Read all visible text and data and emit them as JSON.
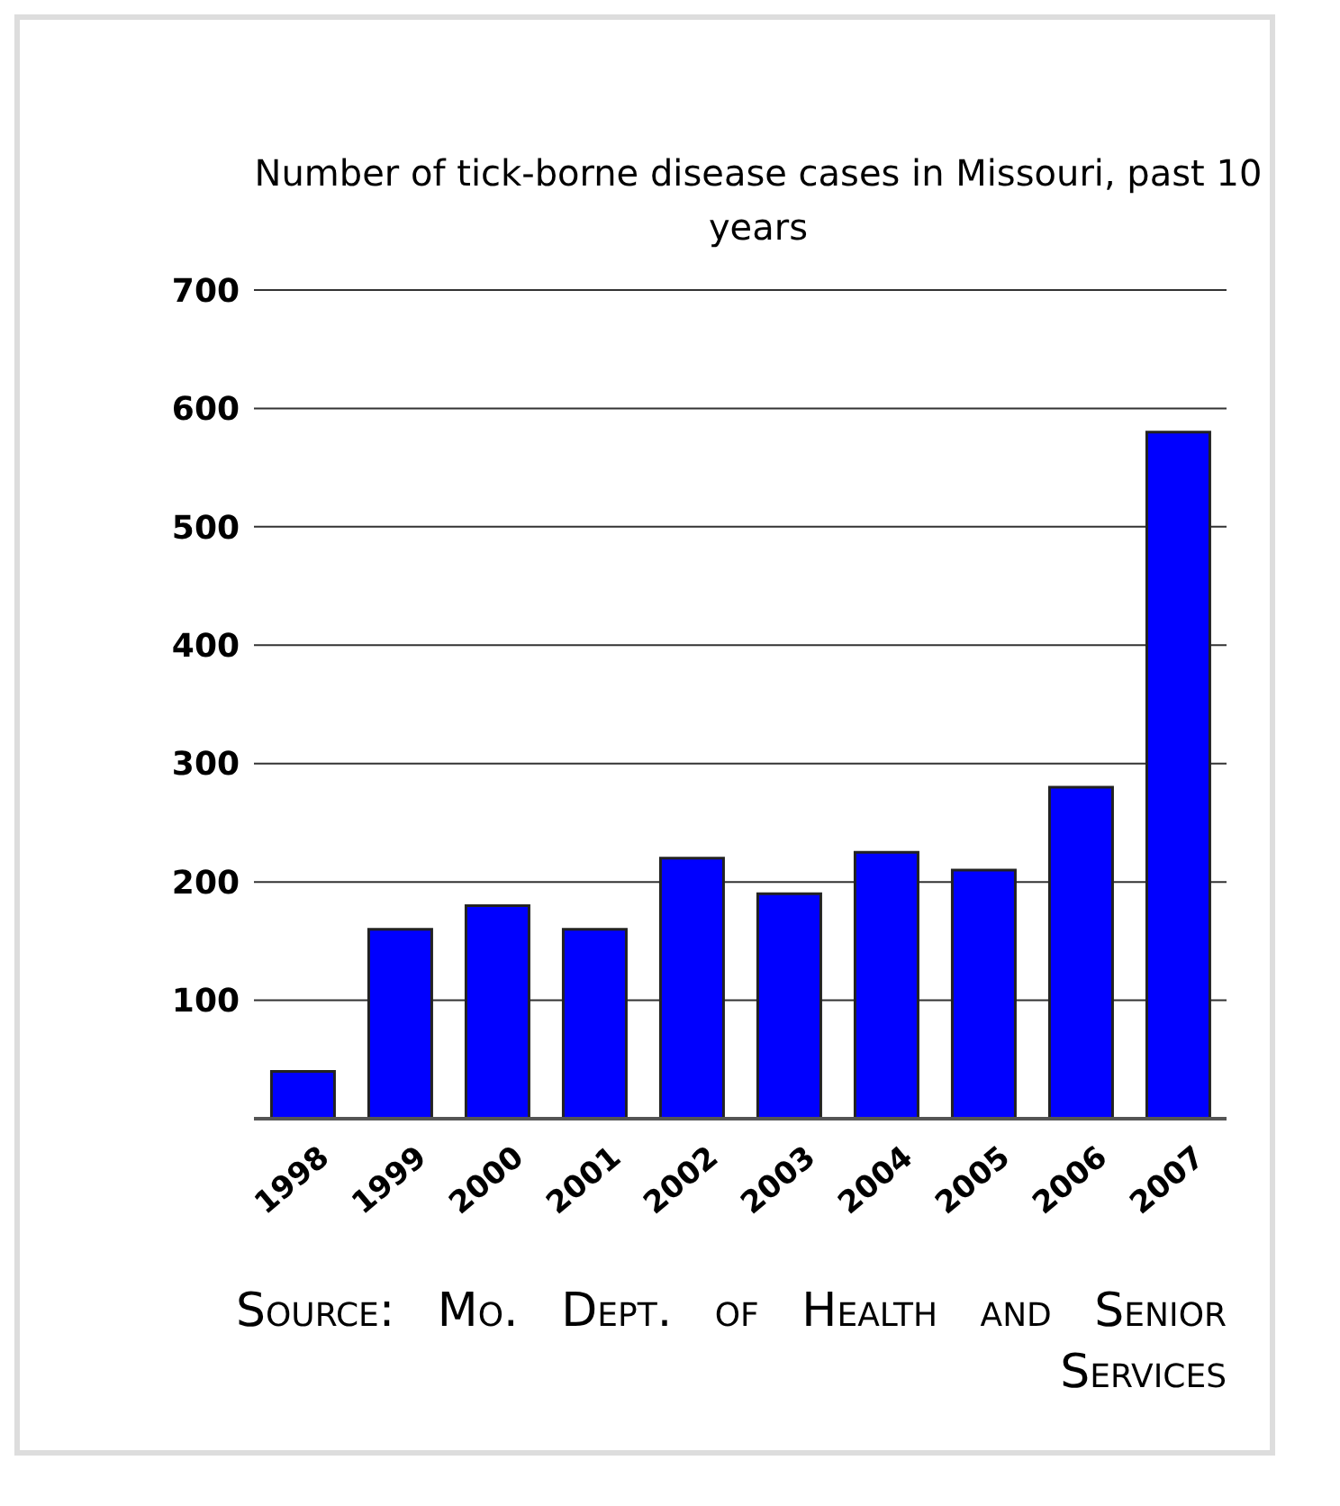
{
  "chart_data": {
    "type": "bar",
    "title": "Number of tick-borne disease cases in Missouri, past 10 years",
    "categories": [
      "1998",
      "1999",
      "2000",
      "2001",
      "2002",
      "2003",
      "2004",
      "2005",
      "2006",
      "2007"
    ],
    "values": [
      40,
      160,
      180,
      160,
      220,
      190,
      225,
      210,
      280,
      580
    ],
    "color": "#0000ff",
    "ylim": [
      0,
      700
    ],
    "yticks": [
      100,
      200,
      300,
      400,
      500,
      600,
      700
    ],
    "grid": "y",
    "annotations": [
      "Source: Mo. Dept. of Health and Senior Services"
    ]
  }
}
